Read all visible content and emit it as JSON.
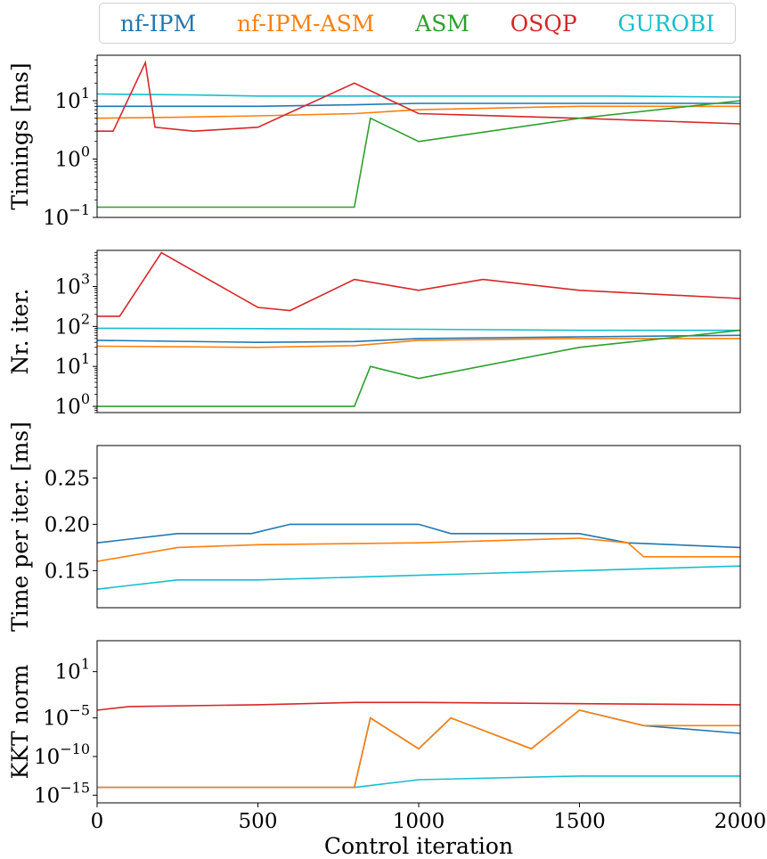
{
  "colors": {
    "nf-IPM": "#1f77b4",
    "nf-IPM-ASM": "#ff7f0e",
    "ASM": "#2ca02c",
    "OSQP": "#d62728",
    "GUROBI": "#17becf"
  },
  "legend": [
    "nf-IPM",
    "nf-IPM-ASM",
    "ASM",
    "OSQP",
    "GUROBI"
  ],
  "chart_data": [
    {
      "type": "line",
      "ylabel": "Timings [ms]",
      "yscale": "log",
      "ylim": [
        0.1,
        60
      ],
      "yticks": [
        {
          "value": 0.1,
          "base": "10",
          "exp": "−1"
        },
        {
          "value": 1,
          "base": "10",
          "exp": "0"
        },
        {
          "value": 10,
          "base": "10",
          "exp": "1"
        }
      ],
      "xlim": [
        0,
        2000
      ],
      "series": [
        {
          "name": "GUROBI",
          "x": [
            0,
            300,
            500,
            800,
            1200,
            1600,
            2000
          ],
          "y": [
            13,
            12.5,
            12,
            12,
            12,
            12,
            11.5
          ]
        },
        {
          "name": "nf-IPM",
          "x": [
            0,
            250,
            500,
            800,
            1000,
            1500,
            2000
          ],
          "y": [
            8,
            8,
            8,
            8.5,
            9,
            9,
            9
          ]
        },
        {
          "name": "nf-IPM-ASM",
          "x": [
            0,
            250,
            500,
            800,
            1000,
            1500,
            2000
          ],
          "y": [
            5,
            5.2,
            5.5,
            6,
            7,
            8,
            8
          ]
        },
        {
          "name": "OSQP",
          "x": [
            0,
            50,
            150,
            180,
            300,
            500,
            800,
            1000,
            1500,
            2000
          ],
          "y": [
            3,
            3,
            45,
            3.5,
            3,
            3.5,
            20,
            6,
            5,
            4
          ]
        },
        {
          "name": "ASM",
          "x": [
            0,
            50,
            400,
            800,
            850,
            1000,
            1500,
            2000
          ],
          "y": [
            0.15,
            0.15,
            0.15,
            0.15,
            5,
            2,
            5,
            10
          ]
        }
      ]
    },
    {
      "type": "line",
      "ylabel": "Nr. iter.",
      "yscale": "log",
      "ylim": [
        0.7,
        8000
      ],
      "yticks": [
        {
          "value": 1,
          "base": "10",
          "exp": "0"
        },
        {
          "value": 10,
          "base": "10",
          "exp": "1"
        },
        {
          "value": 100,
          "base": "10",
          "exp": "2"
        },
        {
          "value": 1000,
          "base": "10",
          "exp": "3"
        }
      ],
      "xlim": [
        0,
        2000
      ],
      "series": [
        {
          "name": "OSQP",
          "x": [
            0,
            70,
            200,
            500,
            600,
            800,
            1000,
            1200,
            1500,
            2000
          ],
          "y": [
            180,
            180,
            7000,
            300,
            250,
            1500,
            800,
            1500,
            800,
            500
          ]
        },
        {
          "name": "GUROBI",
          "x": [
            0,
            500,
            1000,
            1500,
            2000
          ],
          "y": [
            90,
            88,
            85,
            80,
            80
          ]
        },
        {
          "name": "nf-IPM",
          "x": [
            0,
            500,
            800,
            1000,
            1500,
            2000
          ],
          "y": [
            45,
            40,
            42,
            50,
            55,
            60
          ]
        },
        {
          "name": "nf-IPM-ASM",
          "x": [
            0,
            500,
            800,
            1000,
            1500,
            2000
          ],
          "y": [
            32,
            30,
            33,
            45,
            50,
            50
          ]
        },
        {
          "name": "ASM",
          "x": [
            0,
            400,
            800,
            850,
            1000,
            1500,
            2000
          ],
          "y": [
            1,
            1,
            1,
            10,
            5,
            30,
            80
          ]
        }
      ]
    },
    {
      "type": "line",
      "ylabel": "Time per iter. [ms]",
      "yscale": "linear",
      "ylim": [
        0.11,
        0.285
      ],
      "yticks": [
        {
          "value": 0.15,
          "label": "0.15"
        },
        {
          "value": 0.2,
          "label": "0.20"
        },
        {
          "value": 0.25,
          "label": "0.25"
        }
      ],
      "xlim": [
        0,
        2000
      ],
      "series": [
        {
          "name": "nf-IPM",
          "x": [
            0,
            250,
            480,
            600,
            1000,
            1100,
            1500,
            1650,
            2000
          ],
          "y": [
            0.18,
            0.19,
            0.19,
            0.2,
            0.2,
            0.19,
            0.19,
            0.18,
            0.175
          ]
        },
        {
          "name": "nf-IPM-ASM",
          "x": [
            0,
            250,
            500,
            1000,
            1500,
            1650,
            1700,
            2000
          ],
          "y": [
            0.16,
            0.175,
            0.178,
            0.18,
            0.185,
            0.18,
            0.165,
            0.165
          ]
        },
        {
          "name": "GUROBI",
          "x": [
            0,
            250,
            500,
            1000,
            1500,
            2000
          ],
          "y": [
            0.13,
            0.14,
            0.14,
            0.145,
            0.15,
            0.155
          ]
        }
      ]
    },
    {
      "type": "line",
      "ylabel": "KKT norm",
      "xlabel": "Control iteration",
      "yscale": "log",
      "ylim": [
        1e-16,
        100000.0
      ],
      "yticks": [
        {
          "value": 1e-15,
          "base": "10",
          "exp": "−15"
        },
        {
          "value": 1e-10,
          "base": "10",
          "exp": "−10"
        },
        {
          "value": 1e-05,
          "base": "10",
          "exp": "−5"
        },
        {
          "value": 10,
          "base": "10",
          "exp": "1"
        }
      ],
      "xlim": [
        0,
        2000
      ],
      "xticks": [
        0,
        500,
        1000,
        1500,
        2000
      ],
      "series": [
        {
          "name": "OSQP",
          "x": [
            0,
            100,
            500,
            800,
            1000,
            1500,
            2000
          ],
          "y": [
            0.0001,
            0.0003,
            0.0005,
            0.001,
            0.001,
            0.0007,
            0.0005
          ]
        },
        {
          "name": "GUROBI",
          "x": [
            0,
            800,
            1000,
            1500,
            2000
          ],
          "y": [
            1e-14,
            1e-14,
            1e-13,
            3e-13,
            3e-13
          ]
        },
        {
          "name": "nf-IPM",
          "x": [
            0,
            400,
            800,
            850,
            1000,
            1100,
            1350,
            1500,
            1700,
            2000
          ],
          "y": [
            1e-14,
            1e-14,
            1e-14,
            1e-05,
            1e-09,
            1e-05,
            1e-09,
            0.0001,
            1e-06,
            1e-07
          ]
        },
        {
          "name": "nf-IPM-ASM",
          "x": [
            0,
            400,
            800,
            850,
            1000,
            1100,
            1350,
            1500,
            1700,
            2000
          ],
          "y": [
            1e-14,
            1e-14,
            1e-14,
            1e-05,
            1e-09,
            1e-05,
            1e-09,
            0.0001,
            1e-06,
            1e-06
          ]
        }
      ]
    }
  ]
}
